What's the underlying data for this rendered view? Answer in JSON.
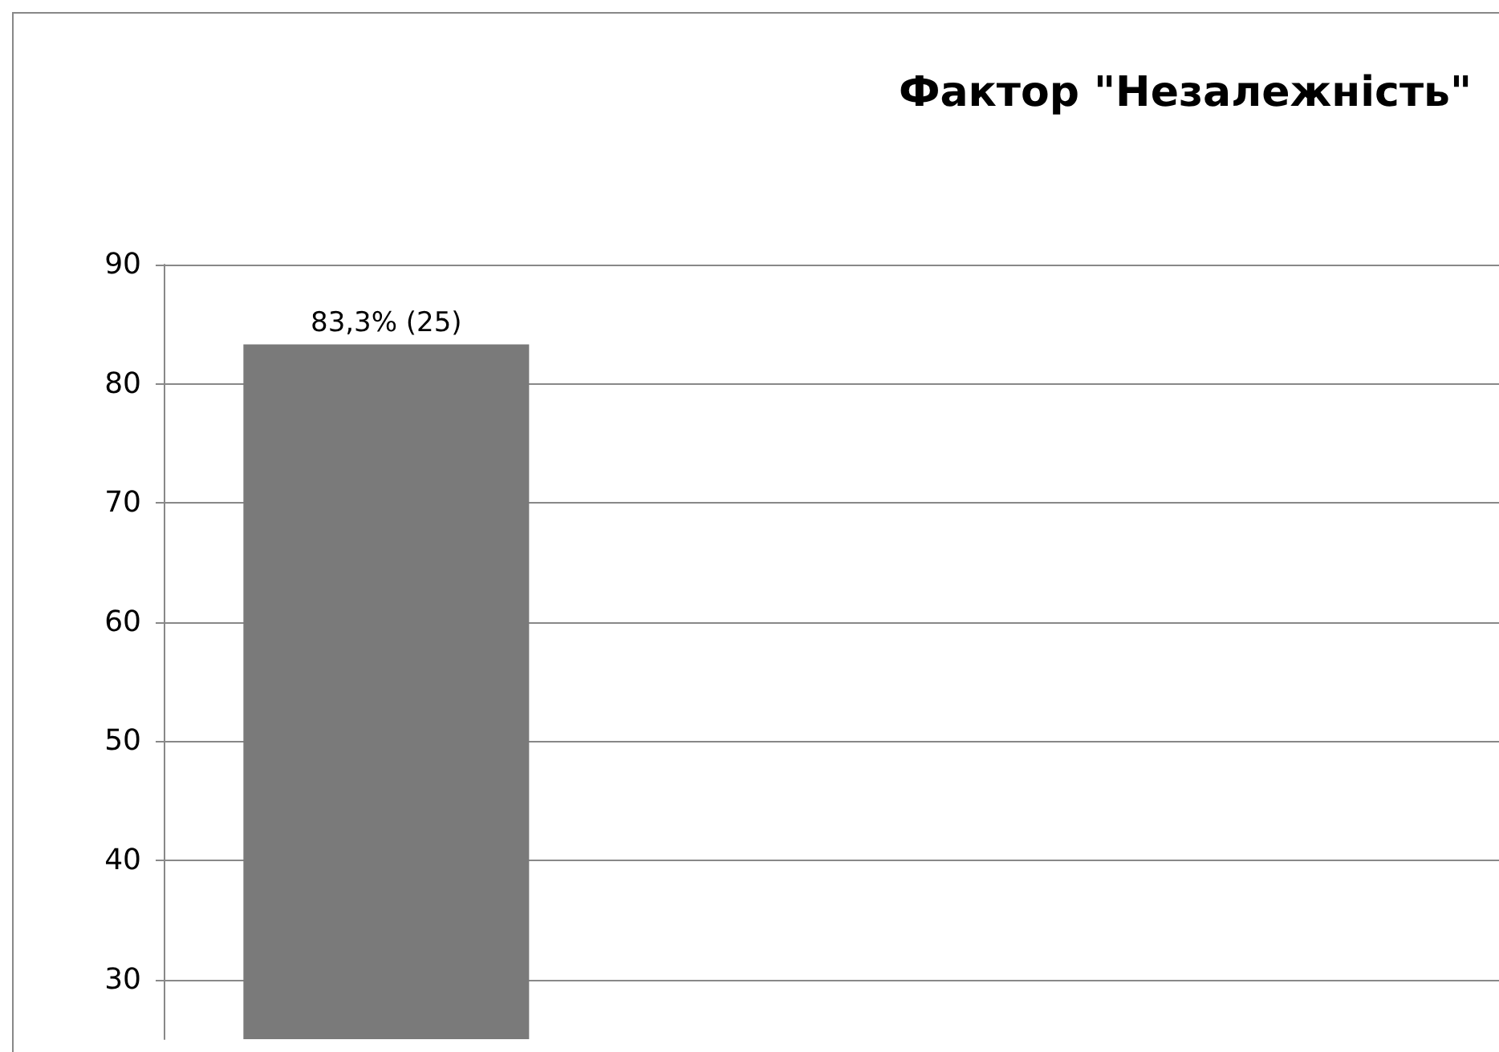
{
  "chart_data": {
    "type": "bar",
    "title": "Фактор \"Незалежність\"",
    "categories": [
      null,
      null,
      null
    ],
    "values": [
      83.3,
      null,
      null
    ],
    "value_labels": [
      "83,3% (25)",
      null,
      null
    ],
    "color": "#7a7a7a",
    "ylim": [
      25,
      90
    ],
    "yticks": [
      30,
      40,
      50,
      60,
      70,
      80,
      90
    ],
    "grid": "y"
  }
}
